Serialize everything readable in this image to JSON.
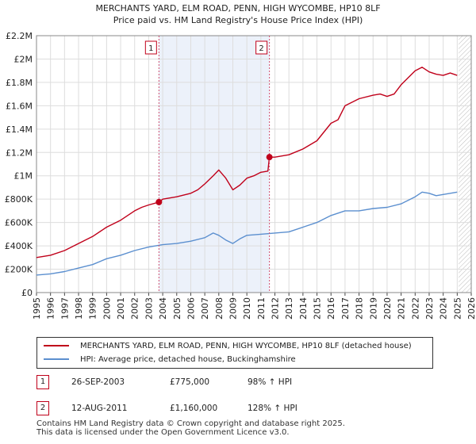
{
  "chart_data": {
    "type": "line",
    "title": "MERCHANTS YARD, ELM ROAD, PENN, HIGH WYCOMBE, HP10 8LF",
    "subtitle": "Price paid vs. HM Land Registry's House Price Index (HPI)",
    "xlim": [
      1995,
      2026
    ],
    "ylim": [
      0,
      2200000
    ],
    "x_ticks": [
      "1995",
      "1996",
      "1997",
      "1998",
      "1999",
      "2000",
      "2001",
      "2002",
      "2003",
      "2004",
      "2005",
      "2006",
      "2007",
      "2008",
      "2009",
      "2010",
      "2011",
      "2012",
      "2013",
      "2014",
      "2015",
      "2016",
      "2017",
      "2018",
      "2019",
      "2020",
      "2021",
      "2022",
      "2023",
      "2024",
      "2025",
      "2026"
    ],
    "y_ticks": [
      {
        "value": 0,
        "label": "£0"
      },
      {
        "value": 200000,
        "label": "£200K"
      },
      {
        "value": 400000,
        "label": "£400K"
      },
      {
        "value": 600000,
        "label": "£600K"
      },
      {
        "value": 800000,
        "label": "£800K"
      },
      {
        "value": 1000000,
        "label": "£1M"
      },
      {
        "value": 1200000,
        "label": "£1.2M"
      },
      {
        "value": 1400000,
        "label": "£1.4M"
      },
      {
        "value": 1600000,
        "label": "£1.6M"
      },
      {
        "value": 1800000,
        "label": "£1.8M"
      },
      {
        "value": 2000000,
        "label": "£2M"
      },
      {
        "value": 2200000,
        "label": "£2.2M"
      }
    ],
    "shaded_region": {
      "from": 2003.73,
      "to": 2011.61,
      "color": "#dde6f5"
    },
    "hatched_region": {
      "from": 2025.1,
      "to": 2026
    },
    "series": [
      {
        "name": "MERCHANTS YARD, ELM ROAD, PENN, HIGH WYCOMBE, HP10 8LF (detached house)",
        "color": "#c0001a",
        "x": [
          1995,
          1996,
          1997,
          1998,
          1999,
          2000,
          2001,
          2002,
          2002.5,
          2003,
          2003.73,
          2004,
          2005,
          2006,
          2006.5,
          2007,
          2007.6,
          2008,
          2008.5,
          2009,
          2009.5,
          2010,
          2010.5,
          2011,
          2011.5,
          2011.61,
          2012,
          2013,
          2014,
          2015,
          2016,
          2016.5,
          2017,
          2018,
          2019,
          2019.5,
          2020,
          2020.5,
          2021,
          2021.5,
          2022,
          2022.5,
          2023,
          2023.5,
          2024,
          2024.5,
          2025
        ],
        "y": [
          300000,
          320000,
          360000,
          420000,
          480000,
          560000,
          620000,
          700000,
          730000,
          750000,
          775000,
          800000,
          820000,
          850000,
          880000,
          930000,
          1000000,
          1050000,
          980000,
          880000,
          920000,
          980000,
          1000000,
          1030000,
          1040000,
          1160000,
          1160000,
          1180000,
          1230000,
          1300000,
          1450000,
          1480000,
          1600000,
          1660000,
          1690000,
          1700000,
          1680000,
          1700000,
          1780000,
          1840000,
          1900000,
          1930000,
          1890000,
          1870000,
          1860000,
          1880000,
          1860000
        ]
      },
      {
        "name": "HPI: Average price, detached house, Buckinghamshire",
        "color": "#5b8fcf",
        "x": [
          1995,
          1996,
          1997,
          1998,
          1999,
          2000,
          2001,
          2002,
          2003,
          2004,
          2005,
          2006,
          2007,
          2007.6,
          2008,
          2008.5,
          2009,
          2009.5,
          2010,
          2011,
          2012,
          2013,
          2014,
          2015,
          2016,
          2017,
          2018,
          2019,
          2020,
          2021,
          2022,
          2022.5,
          2023,
          2023.5,
          2024,
          2024.5,
          2025
        ],
        "y": [
          150000,
          160000,
          180000,
          210000,
          240000,
          290000,
          320000,
          360000,
          390000,
          410000,
          420000,
          440000,
          470000,
          510000,
          490000,
          450000,
          420000,
          460000,
          490000,
          500000,
          510000,
          520000,
          560000,
          600000,
          660000,
          700000,
          700000,
          720000,
          730000,
          760000,
          820000,
          860000,
          850000,
          830000,
          840000,
          850000,
          860000
        ]
      }
    ],
    "annotations": [
      {
        "label": "1",
        "x": 2003.73,
        "y": 775000
      },
      {
        "label": "2",
        "x": 2011.61,
        "y": 1160000
      }
    ]
  },
  "legend": {
    "red_label": "MERCHANTS YARD, ELM ROAD, PENN, HIGH WYCOMBE, HP10 8LF (detached house)",
    "blue_label": "HPI: Average price, detached house, Buckinghamshire"
  },
  "transactions": [
    {
      "num": "1",
      "date": "26-SEP-2003",
      "price": "£775,000",
      "hpi": "98% ↑ HPI"
    },
    {
      "num": "2",
      "date": "12-AUG-2011",
      "price": "£1,160,000",
      "hpi": "128% ↑ HPI"
    }
  ],
  "footer": {
    "line1": "Contains HM Land Registry data © Crown copyright and database right 2025.",
    "line2": "This data is licensed under the Open Government Licence v3.0."
  }
}
